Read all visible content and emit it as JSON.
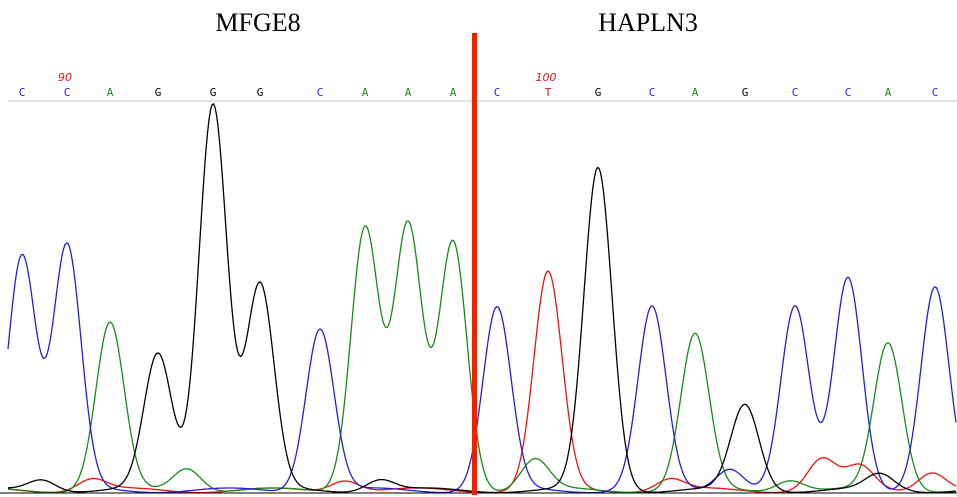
{
  "genes": {
    "left": "MFGE8",
    "right": "HAPLN3"
  },
  "colors": {
    "A": "#1a8a1a",
    "C": "#1f1fe0",
    "G": "#000000",
    "T": "#ee1111",
    "junction": "#ee2200",
    "position": "#ee1111"
  },
  "chart_data": {
    "type": "line",
    "title": "",
    "xlabel": "",
    "ylabel": "",
    "base_calls": [
      "C",
      "C",
      "A",
      "G",
      "G",
      "G",
      "C",
      "A",
      "A",
      "A",
      "C",
      "T",
      "G",
      "C",
      "A",
      "G",
      "C",
      "C",
      "A",
      "C"
    ],
    "position_labels": [
      {
        "index": 1,
        "text": "90"
      },
      {
        "index": 11,
        "text": "100"
      }
    ],
    "junction_after_index": 9,
    "ylim": [
      0,
      100
    ],
    "series": [
      {
        "name": "A",
        "peaks": [
          {
            "x": 110,
            "h": 43
          },
          {
            "x": 365,
            "h": 68
          },
          {
            "x": 408,
            "h": 68
          },
          {
            "x": 453,
            "h": 64
          },
          {
            "x": 695,
            "h": 40
          },
          {
            "x": 888,
            "h": 38
          },
          {
            "x": 187,
            "h": 6
          },
          {
            "x": 535,
            "h": 8
          },
          {
            "x": 790,
            "h": 3
          }
        ]
      },
      {
        "name": "C",
        "peaks": [
          {
            "x": 22,
            "h": 61
          },
          {
            "x": 67,
            "h": 63
          },
          {
            "x": 320,
            "h": 42
          },
          {
            "x": 497,
            "h": 47
          },
          {
            "x": 652,
            "h": 47
          },
          {
            "x": 795,
            "h": 47
          },
          {
            "x": 848,
            "h": 55
          },
          {
            "x": 935,
            "h": 52
          },
          {
            "x": 730,
            "h": 6
          }
        ]
      },
      {
        "name": "G",
        "peaks": [
          {
            "x": 158,
            "h": 35
          },
          {
            "x": 213,
            "h": 100
          },
          {
            "x": 260,
            "h": 53
          },
          {
            "x": 598,
            "h": 83
          },
          {
            "x": 745,
            "h": 22
          },
          {
            "x": 42,
            "h": 3
          },
          {
            "x": 380,
            "h": 3
          },
          {
            "x": 880,
            "h": 4
          }
        ]
      },
      {
        "name": "T",
        "peaks": [
          {
            "x": 548,
            "h": 56
          },
          {
            "x": 92,
            "h": 3
          },
          {
            "x": 345,
            "h": 3
          },
          {
            "x": 670,
            "h": 3
          },
          {
            "x": 822,
            "h": 8
          },
          {
            "x": 860,
            "h": 6
          },
          {
            "x": 932,
            "h": 5
          }
        ]
      }
    ]
  }
}
